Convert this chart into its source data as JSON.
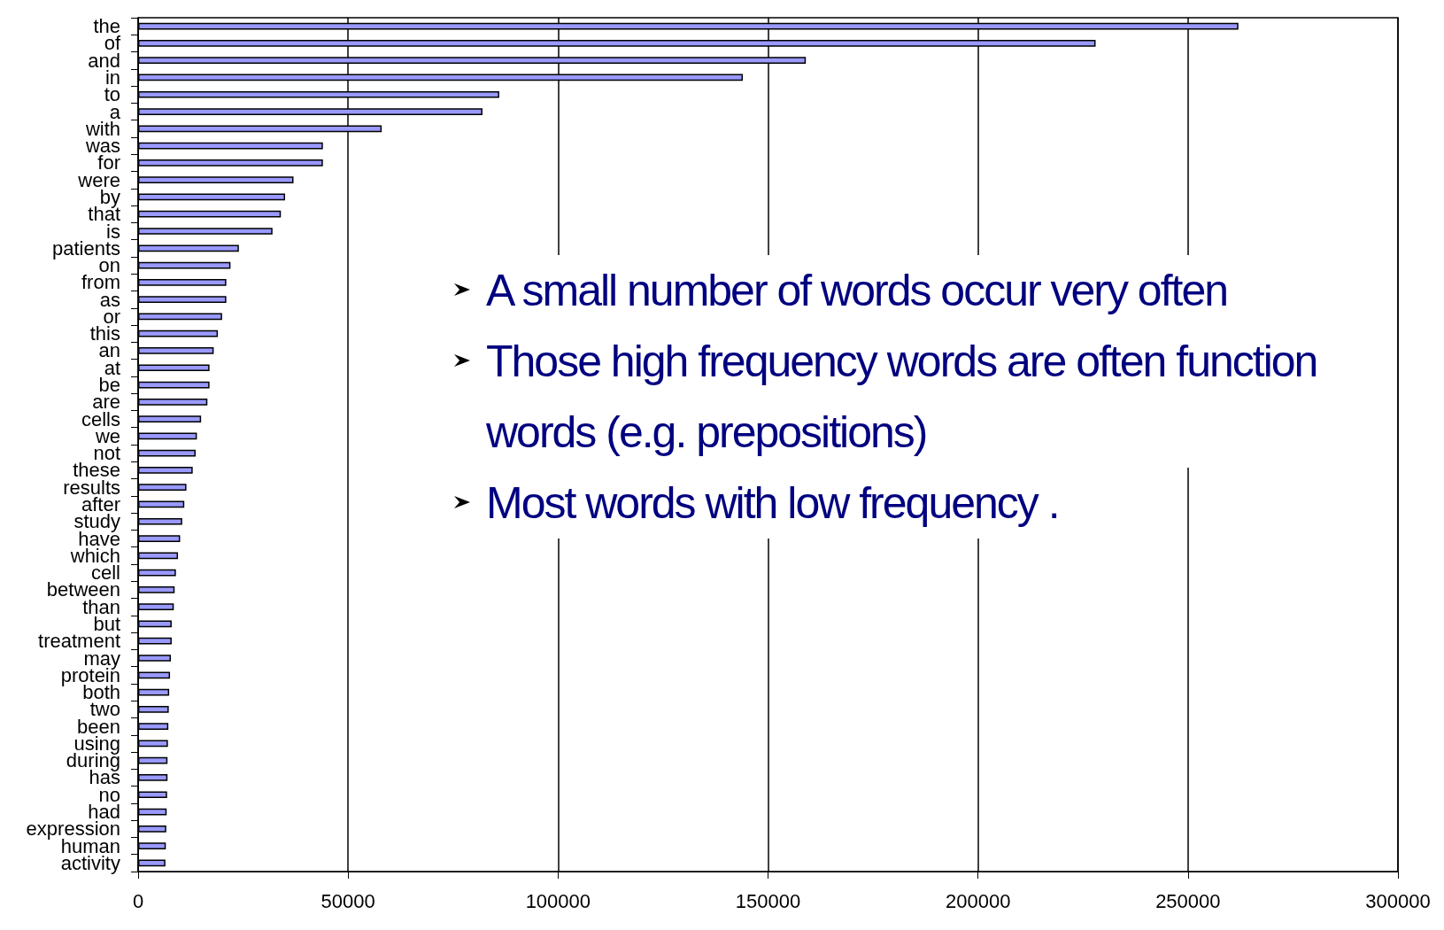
{
  "chart_data": {
    "type": "bar",
    "orientation": "horizontal",
    "categories": [
      "the",
      "of",
      "and",
      "in",
      "to",
      "a",
      "with",
      "was",
      "for",
      "were",
      "by",
      "that",
      "is",
      "patients",
      "on",
      "from",
      "as",
      "or",
      "this",
      "an",
      "at",
      "be",
      "are",
      "cells",
      "we",
      "not",
      "these",
      "results",
      "after",
      "study",
      "have",
      "which",
      "cell",
      "between",
      "than",
      "but",
      "treatment",
      "may",
      "protein",
      "both",
      "two",
      "been",
      "using",
      "during",
      "has",
      "no",
      "had",
      "expression",
      "human",
      "activity"
    ],
    "values": [
      262000,
      228000,
      159000,
      144000,
      86000,
      82000,
      58000,
      44000,
      44000,
      37000,
      35000,
      34000,
      32000,
      24000,
      22000,
      21000,
      21000,
      20000,
      19000,
      18000,
      17000,
      17000,
      16500,
      15000,
      14000,
      13700,
      13000,
      11500,
      11000,
      10500,
      10000,
      9500,
      9000,
      8700,
      8500,
      8000,
      8000,
      7800,
      7600,
      7400,
      7300,
      7200,
      7100,
      7000,
      7000,
      6900,
      6800,
      6700,
      6600,
      6500
    ],
    "color": "#9999ff",
    "xlim": [
      0,
      300000
    ],
    "xticks": [
      0,
      50000,
      100000,
      150000,
      200000,
      250000,
      300000
    ],
    "grid": "x",
    "annotations": [
      "A small number of words occur very often",
      "Those high frequency words are often function words (e.g. prepositions)",
      "Most words with low frequency ."
    ]
  }
}
